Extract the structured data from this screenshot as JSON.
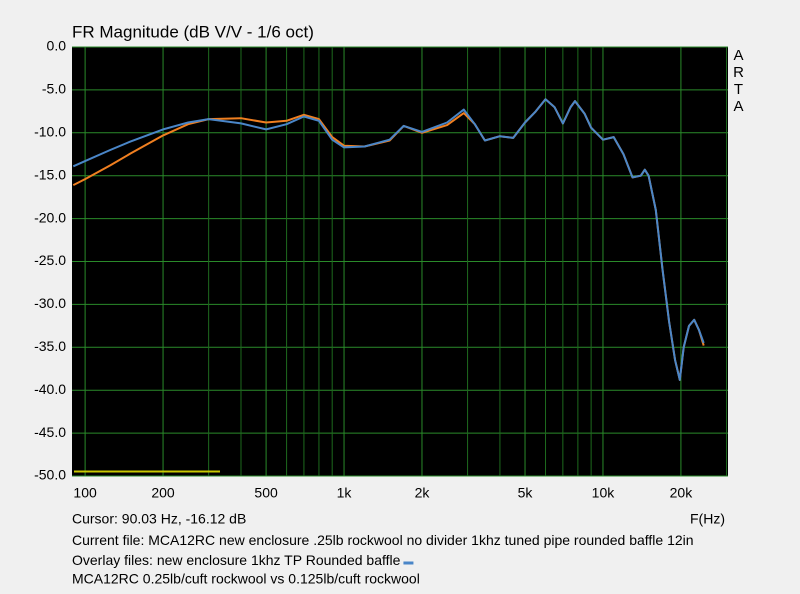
{
  "chart_data": {
    "type": "line",
    "title": "FR Magnitude (dB V/V - 1/6 oct)",
    "brand": "ARTA",
    "xlabel": "F(Hz)",
    "xscale": "log",
    "grid": true,
    "xlim": [
      89,
      30400
    ],
    "ylim": [
      -50,
      0
    ],
    "yticks": [
      {
        "value": 0,
        "label": "0.0"
      },
      {
        "value": -5,
        "label": "-5.0"
      },
      {
        "value": -10,
        "label": "-10.0"
      },
      {
        "value": -15,
        "label": "-15.0"
      },
      {
        "value": -20,
        "label": "-20.0"
      },
      {
        "value": -25,
        "label": "-25.0"
      },
      {
        "value": -30,
        "label": "-30.0"
      },
      {
        "value": -35,
        "label": "-35.0"
      },
      {
        "value": -40,
        "label": "-40.0"
      },
      {
        "value": -45,
        "label": "-45.0"
      },
      {
        "value": -50,
        "label": "-50.0"
      }
    ],
    "xticks": [
      100,
      200,
      500,
      {
        "value": 1000,
        "label": "1k"
      },
      {
        "value": 2000,
        "label": "2k"
      },
      {
        "value": 5000,
        "label": "5k"
      },
      {
        "value": 10000,
        "label": "10k"
      },
      {
        "value": 20000,
        "label": "20k"
      }
    ],
    "xminor": [
      300,
      400,
      600,
      700,
      800,
      900,
      3000,
      4000,
      6000,
      7000,
      8000,
      9000,
      30000
    ],
    "cursor": "Cursor: 90.03 Hz, -16.12 dB",
    "current_label": "Current file:",
    "overlay_label": "Overlay files:",
    "comment": "MCA12RC 0.25lb/cuft rockwool vs 0.125lb/cuft rockwool",
    "x": [
      90,
      100,
      125,
      150,
      200,
      250,
      300,
      400,
      500,
      600,
      700,
      800,
      900,
      1000,
      1200,
      1500,
      1700,
      2000,
      2500,
      2900,
      3200,
      3500,
      4000,
      4500,
      5000,
      5500,
      6000,
      6500,
      7000,
      7500,
      7800,
      8500,
      9000,
      10000,
      11000,
      12000,
      13000,
      14000,
      14500,
      15000,
      16000,
      17000,
      18000,
      19000,
      19800,
      20500,
      21500,
      22500,
      23500,
      24500
    ],
    "series": [
      {
        "name": "MCA12RC new enclosure .25lb rockwool no divider 1khz tuned pipe rounded baffle 12in",
        "color": "#f07f20",
        "values": [
          -16.1,
          -15.4,
          -13.8,
          -12.4,
          -10.3,
          -9.0,
          -8.4,
          -8.3,
          -8.8,
          -8.6,
          -7.9,
          -8.4,
          -10.5,
          -11.5,
          -11.6,
          -10.9,
          -9.2,
          -10.0,
          -9.1,
          -7.7,
          -9.0,
          -10.9,
          -10.4,
          -10.6,
          -8.8,
          -7.5,
          -6.1,
          -7.0,
          -8.9,
          -7.0,
          -6.3,
          -7.8,
          -9.4,
          -10.8,
          -10.5,
          -12.5,
          -15.2,
          -15.0,
          -14.3,
          -15.0,
          -19.0,
          -26,
          -32,
          -36.5,
          -38.8,
          -35,
          -32.5,
          -31.8,
          -33,
          -34.8
        ]
      },
      {
        "name": "new enclosure 1khz TP Rounded baffle",
        "color": "#4a86c8",
        "values": [
          -13.9,
          -13.3,
          -12.0,
          -11.0,
          -9.6,
          -8.8,
          -8.4,
          -8.9,
          -9.6,
          -9.0,
          -8.1,
          -8.6,
          -10.8,
          -11.7,
          -11.6,
          -10.8,
          -9.2,
          -9.9,
          -8.8,
          -7.3,
          -9.0,
          -10.9,
          -10.4,
          -10.6,
          -8.8,
          -7.5,
          -6.1,
          -7.0,
          -8.9,
          -7.0,
          -6.3,
          -7.8,
          -9.4,
          -10.8,
          -10.5,
          -12.5,
          -15.2,
          -15.0,
          -14.3,
          -15.0,
          -19.0,
          -26,
          -32,
          -36.5,
          -38.8,
          -35,
          -32.5,
          -31.8,
          -33,
          -34.5
        ]
      }
    ]
  }
}
